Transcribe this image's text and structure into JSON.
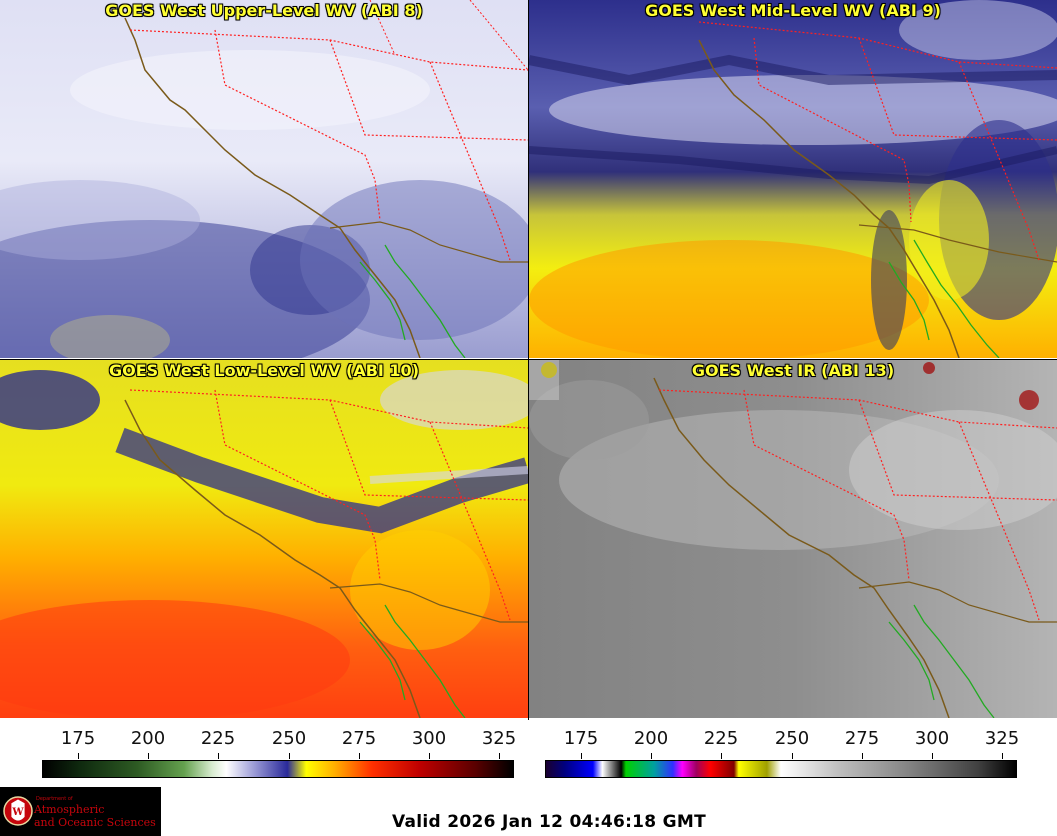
{
  "panels": [
    {
      "title": "GOES West Upper-Level WV (ABI 8)"
    },
    {
      "title": "GOES West Mid-Level WV (ABI 9)"
    },
    {
      "title": "GOES West Low-Level WV (ABI 10)"
    },
    {
      "title": "GOES West IR (ABI 13)"
    }
  ],
  "colorbars": {
    "wv": {
      "ticks": [
        "175",
        "200",
        "225",
        "250",
        "275",
        "300",
        "325"
      ]
    },
    "ir": {
      "ticks": [
        "175",
        "200",
        "225",
        "250",
        "275",
        "300",
        "325"
      ]
    }
  },
  "logo": {
    "dept": "Department of",
    "line1": "Atmospheric",
    "line2": "and Oceanic Sciences",
    "seal_letter": "W"
  },
  "valid_time": "Valid 2026 Jan 12 04:46:18 GMT",
  "colors": {
    "title": "#ffff33",
    "coast": "#7a5a1a",
    "state_border": "#ff2020",
    "mexico_coast": "#22aa22",
    "logo_text": "#c5050c"
  }
}
